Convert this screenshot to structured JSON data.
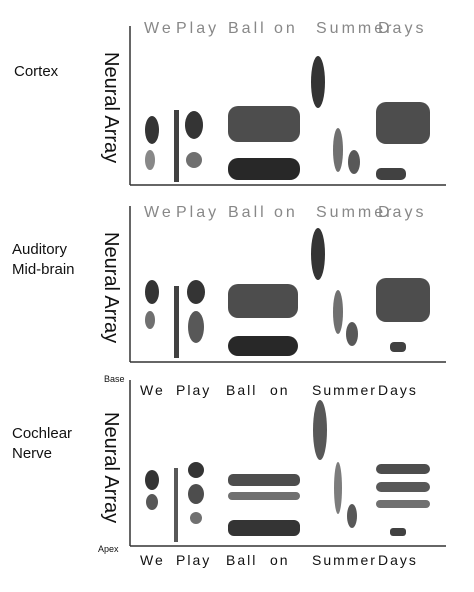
{
  "panels": [
    {
      "region": [
        "Cortex"
      ],
      "axis_label": "Neural Array",
      "words": [
        "We",
        "Play",
        "Ball",
        "on",
        "Summer",
        "Days"
      ]
    },
    {
      "region": [
        "Auditory",
        "Mid-brain"
      ],
      "axis_label": "Neural Array",
      "words": [
        "We",
        "Play",
        "Ball",
        "on",
        "Summer",
        "Days"
      ]
    },
    {
      "region": [
        "Cochlear",
        "Nerve"
      ],
      "axis_label": "Neural Array",
      "words": [
        "We",
        "Play",
        "Ball",
        "on",
        "Summer",
        "Days"
      ],
      "bottom_words": [
        "We",
        "Play",
        "Ball",
        "on",
        "Summer",
        "Days"
      ],
      "base_label": "Base",
      "apex_label": "Apex"
    }
  ],
  "colors": {
    "ink": "#111111",
    "axis": "#333333",
    "faded_text": "#888888"
  }
}
